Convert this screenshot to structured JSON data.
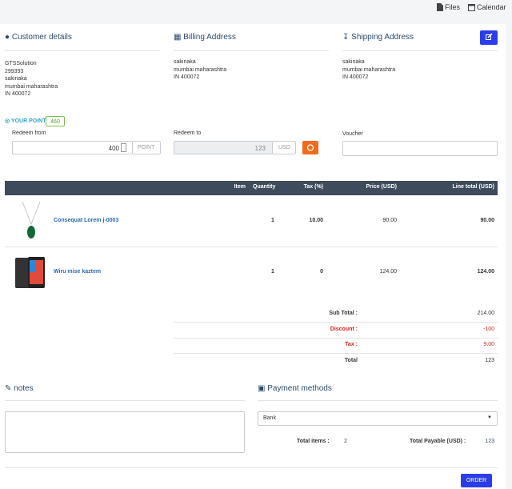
{
  "topbar": {
    "files": "Files",
    "calendar": "Calendar"
  },
  "customer": {
    "title": "Customer details",
    "lines": [
      "GTSSolution",
      "299393",
      "sakinaka",
      "mumbai maharashtra",
      "IN 400072"
    ]
  },
  "billing": {
    "title": "Billing Address",
    "lines": [
      "sakinaka",
      "mumbai maharashtra",
      "IN 400072"
    ]
  },
  "shipping": {
    "title": "Shipping Address",
    "lines": [
      "sakinaka",
      "mumbai maharashtra",
      "IN 400072"
    ]
  },
  "points": {
    "label": "YOUR POINT",
    "value": "460"
  },
  "redeem_from": {
    "label": "Redeem from",
    "value": "400",
    "unit": "POINT"
  },
  "redeem_to": {
    "label": "Redeem to",
    "value": "123",
    "unit": "USD"
  },
  "voucher": {
    "label": "Voucher"
  },
  "table": {
    "headers": [
      "Item",
      "Quantity",
      "Tax (%)",
      "Price (USD)",
      "Line total (USD)"
    ],
    "rows": [
      [
        "Consequat Lorem j-0003",
        "1",
        "10.00",
        "90.00",
        "90.00"
      ],
      [
        "Wiru mise kaztem",
        "1",
        "0",
        "124.00",
        "124.00"
      ]
    ]
  },
  "totals": [
    {
      "label": "Sub Total :",
      "value": "214.00"
    },
    {
      "label": "Discount :",
      "value": "-100"
    },
    {
      "label": "Tax :",
      "value": "9.00"
    },
    {
      "label": "Total",
      "value": "123"
    }
  ],
  "notes": {
    "title": "notes"
  },
  "payment": {
    "title": "Payment methods",
    "selected": "Bank",
    "total_items_label": "Total items :",
    "total_items": "2",
    "total_payable_label": "Total Payable (USD) :",
    "total_payable": "123"
  },
  "order_button": "ORDER"
}
